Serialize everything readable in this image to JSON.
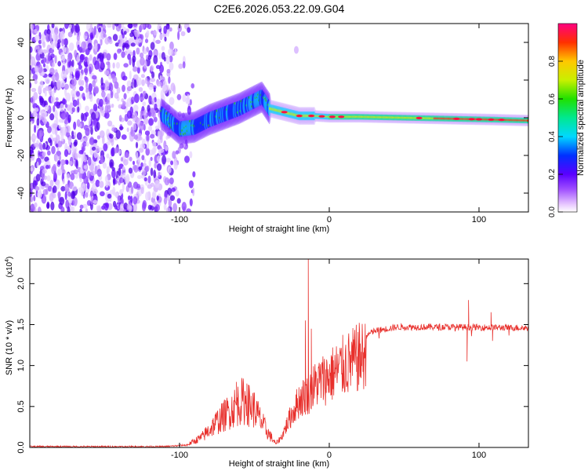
{
  "title": "C2E6.2026.053.22.09.G04",
  "chart_data": [
    {
      "type": "heatmap",
      "xlabel": "Height of straight line (km)",
      "ylabel": "Frequency (Hz)",
      "xlim": [
        -200,
        133
      ],
      "ylim": [
        -50,
        50
      ],
      "xticks": [
        -100,
        0,
        100
      ],
      "xtick_labels": [
        "-100",
        "0",
        "100"
      ],
      "yticks": [
        -40,
        -20,
        0,
        20,
        40
      ],
      "ytick_labels": [
        "-40",
        "-20",
        "0",
        "20",
        "40"
      ],
      "colorbar": {
        "label": "Normalized spectral amplitude",
        "range": [
          0,
          1
        ],
        "ticks": [
          0.0,
          0.2,
          0.4,
          0.6,
          0.8
        ],
        "tick_labels": [
          "0.0",
          "0.2",
          "0.4",
          "0.6",
          "0.8"
        ]
      },
      "noise_region_x": [
        -200,
        -100
      ],
      "signal_track": [
        {
          "x": -112,
          "f": 2
        },
        {
          "x": -100,
          "f": -6
        },
        {
          "x": -90,
          "f": -5
        },
        {
          "x": -80,
          "f": -1
        },
        {
          "x": -70,
          "f": 2
        },
        {
          "x": -60,
          "f": 5
        },
        {
          "x": -50,
          "f": 9
        },
        {
          "x": -45,
          "f": 11
        },
        {
          "x": -40,
          "f": 5
        },
        {
          "x": -30,
          "f": 3
        },
        {
          "x": -20,
          "f": 1
        },
        {
          "x": -10,
          "f": 1
        },
        {
          "x": 0,
          "f": 0.5
        },
        {
          "x": 20,
          "f": 0.5
        },
        {
          "x": 50,
          "f": 0
        },
        {
          "x": 80,
          "f": -0.5
        },
        {
          "x": 110,
          "f": -1
        },
        {
          "x": 133,
          "f": -1.5
        }
      ]
    },
    {
      "type": "line",
      "xlabel": "Height of straight line (km)",
      "ylabel": "SNR (10 * v/v)",
      "scale_label": "(x10",
      "scale_exponent": "4",
      "scale_close": ")",
      "xlim": [
        -200,
        133
      ],
      "ylim": [
        0,
        2.3
      ],
      "xticks": [
        -100,
        0,
        100
      ],
      "xtick_labels": [
        "-100",
        "0",
        "100"
      ],
      "yticks": [
        0.0,
        0.5,
        1.0,
        1.5,
        2.0
      ],
      "ytick_labels": [
        "0.0",
        "0.5",
        "1.0",
        "1.5",
        "2.0"
      ],
      "color": "#e8302c",
      "series": [
        {
          "name": "SNR",
          "envelope": [
            {
              "x": -200,
              "y": 0.01
            },
            {
              "x": -110,
              "y": 0.01
            },
            {
              "x": -95,
              "y": 0.03
            },
            {
              "x": -85,
              "y": 0.12
            },
            {
              "x": -75,
              "y": 0.3
            },
            {
              "x": -65,
              "y": 0.45
            },
            {
              "x": -58,
              "y": 0.55
            },
            {
              "x": -50,
              "y": 0.45
            },
            {
              "x": -42,
              "y": 0.2
            },
            {
              "x": -36,
              "y": 0.05
            },
            {
              "x": -32,
              "y": 0.15
            },
            {
              "x": -26,
              "y": 0.45
            },
            {
              "x": -20,
              "y": 0.7
            },
            {
              "x": -14,
              "y": 0.8
            },
            {
              "x": -8,
              "y": 0.95
            },
            {
              "x": 0,
              "y": 1.05
            },
            {
              "x": 10,
              "y": 1.2
            },
            {
              "x": 20,
              "y": 1.32
            },
            {
              "x": 30,
              "y": 1.42
            },
            {
              "x": 45,
              "y": 1.47
            },
            {
              "x": 80,
              "y": 1.47
            },
            {
              "x": 133,
              "y": 1.46
            }
          ],
          "spikes": [
            {
              "x": -14,
              "y": 2.3
            },
            {
              "x": -16,
              "y": 1.55
            },
            {
              "x": -12,
              "y": 1.45
            },
            {
              "x": 93,
              "y": 1.8
            },
            {
              "x": 92,
              "y": 1.05
            },
            {
              "x": 108,
              "y": 1.65
            },
            {
              "x": 109,
              "y": 1.3
            },
            {
              "x": -62,
              "y": 0.8
            },
            {
              "x": -55,
              "y": 0.78
            }
          ]
        }
      ]
    }
  ]
}
